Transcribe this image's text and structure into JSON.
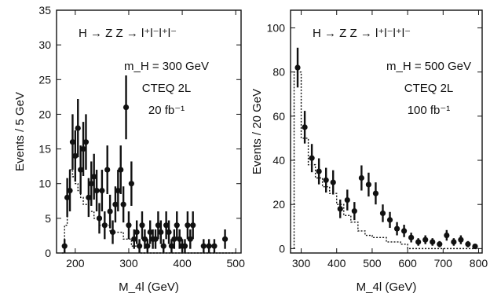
{
  "chart_data": [
    {
      "type": "scatter",
      "title": "H → Z Z → l⁺l⁻l⁺l⁻",
      "annotations": [
        "m_H = 300 GeV",
        "CTEQ 2L",
        "20 fb⁻¹"
      ],
      "xlabel": "M_4l (GeV)",
      "ylabel": "Events / 5 GeV",
      "xlim": [
        165,
        510
      ],
      "ylim": [
        0,
        35
      ],
      "xticks": [
        200,
        300,
        400,
        500
      ],
      "yticks": [
        0,
        5,
        10,
        15,
        20,
        25,
        30,
        35
      ],
      "series": [
        {
          "kind": "data-points-with-errors",
          "x": [
            180,
            185,
            190,
            195,
            200,
            205,
            210,
            215,
            220,
            225,
            230,
            235,
            240,
            245,
            250,
            255,
            260,
            265,
            270,
            275,
            280,
            285,
            290,
            295,
            300,
            305,
            310,
            315,
            320,
            325,
            330,
            335,
            340,
            345,
            350,
            355,
            360,
            365,
            370,
            375,
            380,
            385,
            390,
            395,
            400,
            405,
            410,
            415,
            420,
            440,
            450,
            460,
            480
          ],
          "y": [
            1,
            8,
            9,
            16,
            14,
            18,
            12,
            15,
            16,
            8,
            10,
            11,
            9,
            5,
            9,
            4,
            12,
            6,
            3,
            7,
            9,
            12,
            7,
            21,
            4,
            10,
            2,
            3,
            1,
            4,
            2,
            1,
            3,
            2,
            2,
            4,
            3,
            1,
            4,
            3,
            1,
            2,
            4,
            2,
            1,
            1,
            4,
            2,
            4,
            1,
            1,
            1,
            2
          ],
          "yerr": [
            1,
            2.8,
            3,
            4,
            3.7,
            4.2,
            3.5,
            3.9,
            4,
            2.8,
            3.2,
            3.3,
            3,
            2.2,
            3,
            2,
            3.5,
            2.4,
            1.7,
            2.6,
            3,
            3.5,
            2.6,
            4.6,
            2,
            3.2,
            1.4,
            1.7,
            1,
            2,
            1.4,
            1,
            1.7,
            1.4,
            1.4,
            2,
            1.7,
            1,
            2,
            1.7,
            1,
            1.4,
            2,
            1.4,
            1,
            1,
            2,
            1.4,
            2,
            1,
            1,
            1,
            1.4
          ]
        },
        {
          "kind": "background-histogram",
          "x": [
            175,
            180,
            185,
            190,
            195,
            200,
            205,
            210,
            215,
            220,
            225,
            230,
            235,
            240,
            245,
            250,
            255,
            260,
            265,
            270,
            275,
            280,
            285,
            290,
            295,
            300,
            305,
            310,
            315,
            320,
            350,
            500
          ],
          "y": [
            0,
            4,
            9,
            12,
            11,
            10,
            9,
            8,
            7,
            7,
            6,
            6,
            5,
            5,
            4,
            4,
            4,
            4,
            3,
            3,
            3,
            3,
            3,
            2,
            2,
            2,
            1,
            1,
            1,
            0,
            0,
            0
          ]
        }
      ]
    },
    {
      "type": "scatter",
      "title": "H → Z Z → l⁺l⁻l⁺l⁻",
      "annotations": [
        "m_H = 500 GeV",
        "CTEQ 2L",
        "100 fb⁻¹"
      ],
      "xlabel": "M_4l (GeV)",
      "ylabel": "Events / 20 GeV",
      "xlim": [
        270,
        810
      ],
      "ylim": [
        -2,
        108
      ],
      "xticks": [
        300,
        400,
        500,
        600,
        700,
        800
      ],
      "yticks": [
        0,
        20,
        40,
        60,
        80,
        100
      ],
      "series": [
        {
          "kind": "data-points-with-errors",
          "x": [
            290,
            310,
            330,
            350,
            370,
            390,
            410,
            430,
            450,
            470,
            490,
            510,
            530,
            550,
            570,
            590,
            610,
            630,
            650,
            670,
            690,
            710,
            730,
            750,
            770,
            790
          ],
          "y": [
            82,
            55,
            41,
            35,
            31,
            30,
            18,
            22,
            17,
            32,
            29,
            25,
            16,
            13,
            9,
            8,
            5,
            3,
            4,
            3,
            2,
            6,
            3,
            4,
            2,
            1
          ],
          "yerr": [
            9,
            7.4,
            6.4,
            5.9,
            5.6,
            5.5,
            4.2,
            4.7,
            4.1,
            5.7,
            5.4,
            5,
            4,
            3.6,
            3,
            2.8,
            2.2,
            1.7,
            2,
            1.7,
            1.4,
            2.4,
            1.7,
            2,
            1.4,
            1
          ]
        },
        {
          "kind": "background-histogram",
          "x": [
            280,
            300,
            320,
            340,
            360,
            380,
            400,
            420,
            440,
            460,
            480,
            500,
            520,
            540,
            560,
            580,
            600,
            800
          ],
          "y": [
            80,
            50,
            38,
            32,
            28,
            25,
            20,
            15,
            12,
            8,
            6,
            5,
            5,
            3,
            3,
            2,
            0,
            0
          ]
        }
      ]
    }
  ]
}
